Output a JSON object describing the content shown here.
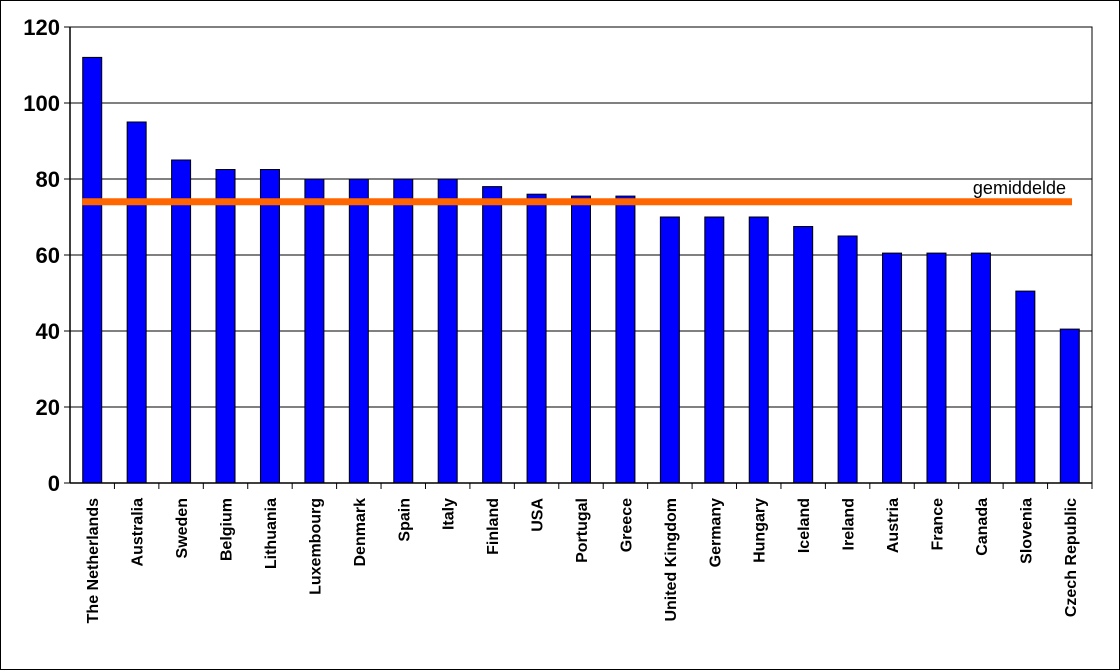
{
  "chart_data": {
    "type": "bar",
    "categories": [
      "The Netherlands",
      "Australia",
      "Sweden",
      "Belgium",
      "Lithuania",
      "Luxembourg",
      "Denmark",
      "Spain",
      "Italy",
      "Finland",
      "USA",
      "Portugal",
      "Greece",
      "United Kingdom",
      "Germany",
      "Hungary",
      "Iceland",
      "Ireland",
      "Austria",
      "France",
      "Canada",
      "Slovenia",
      "Czech Republic"
    ],
    "values": [
      112,
      95,
      85,
      82.5,
      82.5,
      80,
      80,
      80,
      80,
      78,
      76,
      75.5,
      75.5,
      70,
      70,
      70,
      67.5,
      65,
      60.5,
      60.5,
      60.5,
      50.5,
      40.5
    ],
    "reference_line": {
      "label": "gemiddelde",
      "value": 74,
      "color": "#ff6600"
    },
    "ylim": [
      0,
      120
    ],
    "yticks": [
      0,
      20,
      40,
      60,
      80,
      100,
      120
    ],
    "grid": true,
    "bar_color": "#0000ff",
    "title": "",
    "xlabel": "",
    "ylabel": ""
  }
}
